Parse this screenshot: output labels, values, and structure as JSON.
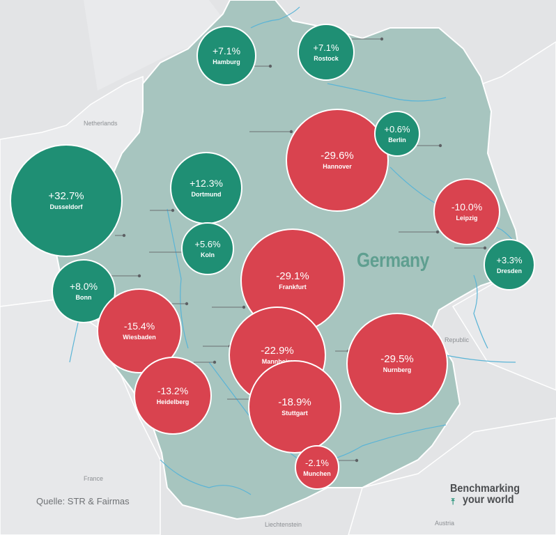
{
  "map": {
    "country": "Germany",
    "neighbors": {
      "netherlands": "Netherlands",
      "republic": "Republic",
      "france": "France",
      "liechtenstein": "Liechtenstein",
      "austria": "Austria"
    },
    "source": "Quelle: STR & Fairmas",
    "brand": {
      "line1": "Benchmarking",
      "line2": "your world"
    },
    "colors": {
      "positive": "#1f8f74",
      "negative": "#d9434f",
      "land": "#a7c5bf",
      "background": "#e3e4e6",
      "river": "#5ab4d6"
    }
  },
  "cities": [
    {
      "name": "Hamburg",
      "change": "+7.1%",
      "value": 7.1
    },
    {
      "name": "Rostock",
      "change": "+7.1%",
      "value": 7.1
    },
    {
      "name": "Hannover",
      "change": "-29.6%",
      "value": -29.6
    },
    {
      "name": "Berlin",
      "change": "+0.6%",
      "value": 0.6
    },
    {
      "name": "Dusseldorf",
      "change": "+32.7%",
      "value": 32.7
    },
    {
      "name": "Dortmund",
      "change": "+12.3%",
      "value": 12.3
    },
    {
      "name": "Leipzig",
      "change": "-10.0%",
      "value": -10.0
    },
    {
      "name": "Koln",
      "change": "+5.6%",
      "value": 5.6
    },
    {
      "name": "Dresden",
      "change": "+3.3%",
      "value": 3.3
    },
    {
      "name": "Bonn",
      "change": "+8.0%",
      "value": 8.0
    },
    {
      "name": "Frankfurt",
      "change": "-29.1%",
      "value": -29.1
    },
    {
      "name": "Wiesbaden",
      "change": "-15.4%",
      "value": -15.4
    },
    {
      "name": "Mannheim",
      "change": "-22.9%",
      "value": -22.9
    },
    {
      "name": "Nurnberg",
      "change": "-29.5%",
      "value": -29.5
    },
    {
      "name": "Heidelberg",
      "change": "-13.2%",
      "value": -13.2
    },
    {
      "name": "Stuttgart",
      "change": "-18.9%",
      "value": -18.9
    },
    {
      "name": "Munchen",
      "change": "-2.1%",
      "value": -2.1
    }
  ]
}
